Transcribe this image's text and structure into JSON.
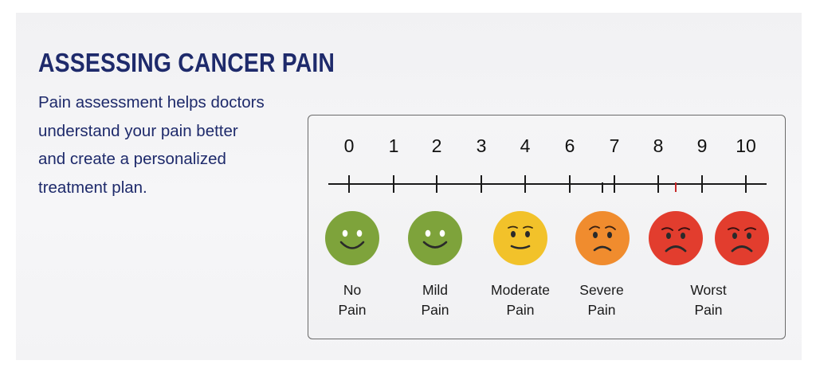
{
  "header": {
    "title": "ASSESSING CANCER PAIN",
    "description_lines": [
      "Pain assessment helps doctors",
      "understand your pain better",
      "and create a personalized",
      "treatment plan."
    ]
  },
  "scale": {
    "numbers": [
      "0",
      "1",
      "2",
      "3",
      "4",
      "6",
      "7",
      "8",
      "9",
      "10"
    ],
    "faces": [
      {
        "icon": "smiling-face-icon",
        "color": "#7ea33b"
      },
      {
        "icon": "smiling-face-icon",
        "color": "#7ea33b"
      },
      {
        "icon": "slight-smile-face-icon",
        "color": "#f2c22a"
      },
      {
        "icon": "worried-face-icon",
        "color": "#f08c2e"
      },
      {
        "icon": "sad-face-icon",
        "color": "#e23d2e"
      },
      {
        "icon": "sad-face-icon",
        "color": "#e23d2e"
      }
    ],
    "labels": [
      {
        "line1": "No",
        "line2": "Pain"
      },
      {
        "line1": "Mild",
        "line2": "Pain"
      },
      {
        "line1": "Moderate",
        "line2": "Pain"
      },
      {
        "line1": "Severe",
        "line2": "Pain"
      },
      {
        "line1": "Worst",
        "line2": "Pain"
      }
    ]
  }
}
